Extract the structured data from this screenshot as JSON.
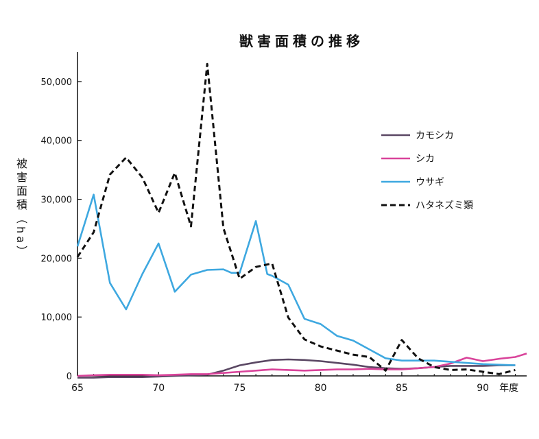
{
  "chart_data": {
    "type": "line",
    "title": "獣害面積の推移",
    "ylabel": "被害面積（ha）",
    "xlabel_suffix": "年度",
    "xlim": [
      65,
      92.7
    ],
    "ylim": [
      0,
      55000
    ],
    "x_ticks": [
      65,
      70,
      75,
      80,
      85,
      90
    ],
    "x_tick_labels": [
      "65",
      "70",
      "75",
      "80",
      "85",
      "90"
    ],
    "y_ticks": [
      0,
      10000,
      20000,
      30000,
      40000,
      50000
    ],
    "y_tick_labels": [
      "0",
      "10,000",
      "20,000",
      "30,000",
      "40,000",
      "50,000"
    ],
    "legend_position": "right",
    "series": [
      {
        "name": "カモシカ",
        "color": "#5a4763",
        "style": "solid",
        "x": [
          65,
          66,
          67,
          68,
          69,
          70,
          71,
          72,
          73,
          74,
          75,
          76,
          77,
          78,
          79,
          80,
          81,
          82,
          83,
          84,
          85,
          86,
          87,
          88,
          89,
          90,
          91,
          92
        ],
        "y": [
          -300,
          -300,
          -200,
          -200,
          -200,
          -100,
          0,
          100,
          200,
          900,
          1800,
          2300,
          2700,
          2800,
          2700,
          2500,
          2200,
          1900,
          1500,
          1300,
          1200,
          1300,
          1500,
          1700,
          1700,
          1700,
          1800,
          1800
        ]
      },
      {
        "name": "シカ",
        "color": "#d9439a",
        "style": "solid",
        "x": [
          65,
          66,
          67,
          68,
          69,
          70,
          71,
          72,
          73,
          74,
          75,
          76,
          77,
          78,
          79,
          80,
          81,
          82,
          83,
          84,
          85,
          86,
          87,
          88,
          89,
          90,
          91,
          92,
          92.7
        ],
        "y": [
          0,
          100,
          200,
          200,
          200,
          100,
          200,
          300,
          300,
          500,
          700,
          900,
          1100,
          1000,
          900,
          1000,
          1100,
          1100,
          1200,
          1100,
          1100,
          1300,
          1500,
          2100,
          3100,
          2500,
          2900,
          3200,
          3800
        ]
      },
      {
        "name": "ウサギ",
        "color": "#3ea8e0",
        "style": "solid",
        "x": [
          65,
          66,
          67,
          68,
          69,
          70,
          71,
          72,
          73,
          74,
          74.5,
          75,
          76,
          76.7,
          77,
          78,
          79,
          80,
          81,
          82,
          83,
          84,
          85,
          86,
          87,
          88,
          89,
          90,
          91,
          92
        ],
        "y": [
          22000,
          30800,
          15800,
          11300,
          17300,
          22500,
          14300,
          17200,
          18000,
          18100,
          17500,
          17500,
          26300,
          17300,
          17000,
          15500,
          9700,
          8800,
          6800,
          6000,
          4500,
          3000,
          2600,
          2600,
          2600,
          2400,
          2200,
          2000,
          1900,
          1800
        ]
      },
      {
        "name": "ハタネズミ類",
        "color": "#111111",
        "style": "dashed",
        "x": [
          65,
          66,
          67,
          68,
          69,
          70,
          71,
          72,
          73,
          74,
          75,
          76,
          77,
          78,
          79,
          80,
          81,
          82,
          83,
          84,
          85,
          86,
          87,
          88,
          89,
          90,
          91,
          92
        ],
        "y": [
          20200,
          24400,
          34200,
          37100,
          33700,
          27700,
          34500,
          25400,
          53000,
          25100,
          16500,
          18500,
          19100,
          9900,
          6200,
          5000,
          4300,
          3600,
          3200,
          900,
          6100,
          3000,
          1500,
          1000,
          1100,
          700,
          300,
          1000
        ]
      }
    ]
  }
}
